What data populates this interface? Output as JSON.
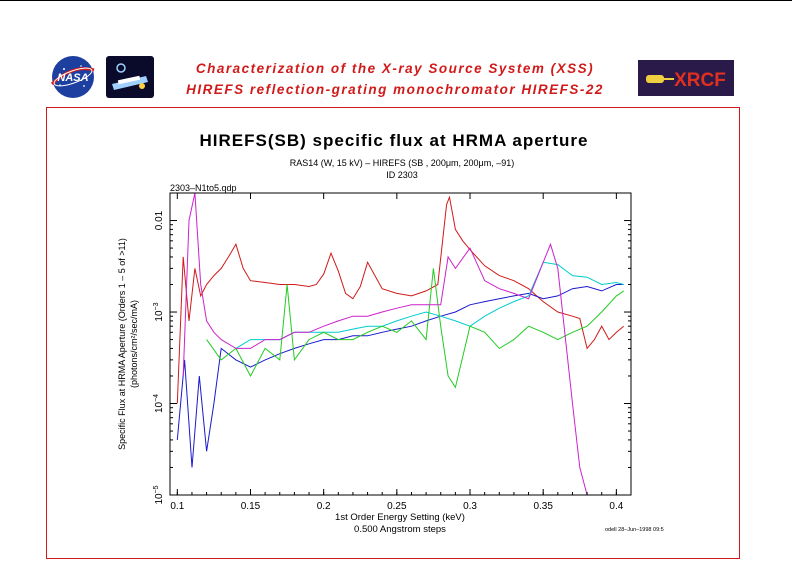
{
  "header": {
    "title_line1": "Characterization of the X-ray Source System (XSS)",
    "title_line2": "HIREFS reflection-grating monochromator  HIREFS-22"
  },
  "logos": {
    "nasa": "NASA",
    "xrcf": "XRCF"
  },
  "colors": {
    "frame": "#d11a1a",
    "header_text": "#d11a1a",
    "series": [
      "#d11a1a",
      "#1a1acc",
      "#00cccc",
      "#22cc22",
      "#cc22cc"
    ]
  },
  "chart_data": {
    "type": "line",
    "title": "HIREFS(SB) specific flux at HRMA aperture",
    "subtitle": "RAS14 (W, 15 kV) – HIREFS (SB , 200μm, 200μm, –91)",
    "subtitle2": "ID 2303",
    "file_label": "2303–N1to5.qdp",
    "xlabel": "1st Order Energy Setting (keV)",
    "xlabel2": "0.500 Angstrom steps",
    "ylabel": "Specific Flux at HRMA Aperture (Orders 1 – 5 of >11)",
    "ylabel2": "(photons/cm²/sec/mA)",
    "footnote": "odell 28–Jun–1998 09:5",
    "xlim": [
      0.095,
      0.41
    ],
    "ylim": [
      1e-05,
      0.02
    ],
    "yscale": "log",
    "x_ticks": [
      0.1,
      0.15,
      0.2,
      0.25,
      0.3,
      0.35,
      0.4
    ],
    "x_tick_labels": [
      "0.1",
      "0.15",
      "0.2",
      "0.25",
      "0.3",
      "0.35",
      "0.4"
    ],
    "y_ticks": [
      1e-05,
      0.0001,
      0.001,
      0.01
    ],
    "y_tick_labels": [
      {
        "base": "10",
        "exp": "−5"
      },
      {
        "base": "10",
        "exp": "−4"
      },
      {
        "base": "10",
        "exp": "−3"
      },
      {
        "base": "0.01",
        "exp": ""
      }
    ],
    "series": [
      {
        "color": "#d11a1a",
        "x": [
          0.1,
          0.104,
          0.108,
          0.112,
          0.116,
          0.12,
          0.125,
          0.13,
          0.135,
          0.14,
          0.145,
          0.15,
          0.16,
          0.17,
          0.18,
          0.19,
          0.195,
          0.2,
          0.205,
          0.21,
          0.215,
          0.22,
          0.225,
          0.23,
          0.235,
          0.24,
          0.25,
          0.26,
          0.27,
          0.278,
          0.284,
          0.286,
          0.29,
          0.295,
          0.3,
          0.31,
          0.32,
          0.33,
          0.34,
          0.35,
          0.36,
          0.37,
          0.375,
          0.38,
          0.385,
          0.39,
          0.395,
          0.4,
          0.405
        ],
        "y": [
          0.0001,
          0.004,
          0.0008,
          0.003,
          0.0015,
          0.002,
          0.0025,
          0.003,
          0.004,
          0.0055,
          0.003,
          0.0022,
          0.0021,
          0.002,
          0.002,
          0.0019,
          0.002,
          0.0026,
          0.0044,
          0.0028,
          0.0016,
          0.0014,
          0.0019,
          0.0035,
          0.0025,
          0.0018,
          0.0016,
          0.0015,
          0.0017,
          0.002,
          0.015,
          0.018,
          0.008,
          0.006,
          0.0048,
          0.0032,
          0.0025,
          0.0022,
          0.0018,
          0.0013,
          0.001,
          0.0009,
          0.00085,
          0.0004,
          0.0005,
          0.0007,
          0.0005,
          0.0006,
          0.0007
        ]
      },
      {
        "color": "#1a1acc",
        "x": [
          0.1,
          0.105,
          0.11,
          0.115,
          0.12,
          0.125,
          0.13,
          0.14,
          0.15,
          0.16,
          0.17,
          0.18,
          0.19,
          0.2,
          0.21,
          0.22,
          0.23,
          0.24,
          0.25,
          0.26,
          0.27,
          0.28,
          0.29,
          0.3,
          0.31,
          0.32,
          0.33,
          0.34,
          0.35,
          0.36,
          0.37,
          0.38,
          0.39,
          0.4,
          0.405
        ],
        "y": [
          4e-05,
          0.0003,
          2e-05,
          0.0002,
          3e-05,
          0.0001,
          0.0004,
          0.0003,
          0.00025,
          0.0003,
          0.00035,
          0.0004,
          0.00045,
          0.0005,
          0.0005,
          0.00055,
          0.00055,
          0.0006,
          0.00065,
          0.0007,
          0.0008,
          0.0009,
          0.001,
          0.0012,
          0.0013,
          0.0014,
          0.0015,
          0.0016,
          0.0014,
          0.0015,
          0.0018,
          0.0019,
          0.0017,
          0.002,
          0.002
        ]
      },
      {
        "color": "#00cccc",
        "x": [
          0.14,
          0.15,
          0.16,
          0.17,
          0.18,
          0.19,
          0.2,
          0.21,
          0.22,
          0.23,
          0.24,
          0.25,
          0.26,
          0.27,
          0.28,
          0.29,
          0.3,
          0.31,
          0.32,
          0.33,
          0.34,
          0.35,
          0.36,
          0.37,
          0.38,
          0.39,
          0.4,
          0.405
        ],
        "y": [
          0.0004,
          0.0005,
          0.0005,
          0.0005,
          0.0006,
          0.0006,
          0.0006,
          0.0006,
          0.00065,
          0.0007,
          0.0007,
          0.0008,
          0.0009,
          0.001,
          0.0009,
          0.0008,
          0.0007,
          0.0009,
          0.0011,
          0.0013,
          0.0015,
          0.0035,
          0.0033,
          0.0025,
          0.0024,
          0.002,
          0.0021,
          0.002
        ]
      },
      {
        "color": "#22cc22",
        "x": [
          0.12,
          0.13,
          0.14,
          0.15,
          0.16,
          0.17,
          0.175,
          0.18,
          0.19,
          0.2,
          0.21,
          0.22,
          0.23,
          0.24,
          0.25,
          0.26,
          0.27,
          0.275,
          0.28,
          0.285,
          0.29,
          0.3,
          0.31,
          0.32,
          0.33,
          0.34,
          0.35,
          0.36,
          0.37,
          0.38,
          0.39,
          0.4,
          0.405
        ],
        "y": [
          0.0005,
          0.0003,
          0.0004,
          0.0002,
          0.0004,
          0.0003,
          0.002,
          0.0003,
          0.0005,
          0.0006,
          0.0005,
          0.0005,
          0.0006,
          0.0007,
          0.0006,
          0.0008,
          0.0005,
          0.003,
          0.0007,
          0.0002,
          0.00015,
          0.0007,
          0.0006,
          0.0004,
          0.0005,
          0.0007,
          0.0006,
          0.0005,
          0.0006,
          0.0007,
          0.001,
          0.0015,
          0.0017
        ]
      },
      {
        "color": "#cc22cc",
        "x": [
          0.104,
          0.108,
          0.112,
          0.116,
          0.12,
          0.125,
          0.13,
          0.14,
          0.15,
          0.16,
          0.17,
          0.18,
          0.19,
          0.2,
          0.21,
          0.22,
          0.23,
          0.24,
          0.25,
          0.26,
          0.27,
          0.28,
          0.285,
          0.29,
          0.3,
          0.31,
          0.32,
          0.33,
          0.34,
          0.35,
          0.355,
          0.36,
          0.37,
          0.375,
          0.38
        ],
        "y": [
          0.0002,
          0.01,
          0.02,
          0.002,
          0.0008,
          0.0006,
          0.0005,
          0.0004,
          0.0004,
          0.0005,
          0.0005,
          0.0006,
          0.0006,
          0.0007,
          0.0008,
          0.0009,
          0.0009,
          0.001,
          0.0011,
          0.0012,
          0.0012,
          0.0012,
          0.004,
          0.003,
          0.005,
          0.0022,
          0.0018,
          0.0016,
          0.0014,
          0.0035,
          0.0055,
          0.003,
          0.0001,
          2e-05,
          1e-05
        ]
      }
    ]
  }
}
